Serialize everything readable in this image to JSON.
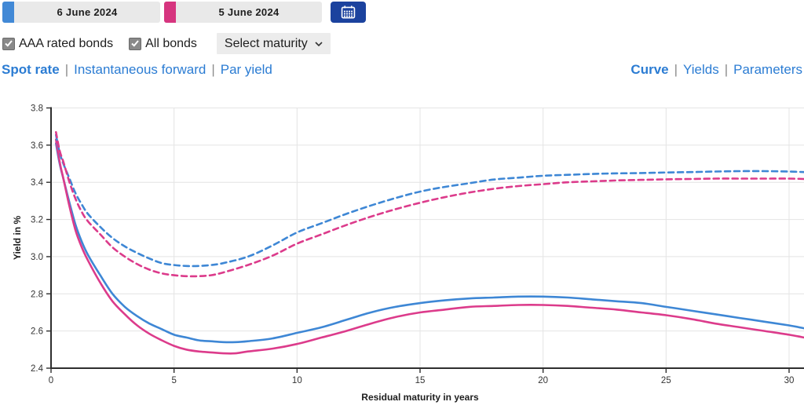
{
  "dates": [
    {
      "label": "6 June 2024",
      "color": "#4289d6"
    },
    {
      "label": "5 June 2024",
      "color": "#d6357f"
    }
  ],
  "calendar_button": {
    "icon": "calendar-icon"
  },
  "filters": {
    "checkboxes": [
      {
        "label": "AAA rated bonds",
        "checked": true
      },
      {
        "label": "All bonds",
        "checked": true
      }
    ],
    "maturity_select": {
      "value": "Select maturity",
      "icon": "chevron-down-icon"
    }
  },
  "rate_tabs": {
    "separator": "|",
    "items": [
      {
        "label": "Spot rate",
        "active": true
      },
      {
        "label": "Instantaneous forward",
        "active": false
      },
      {
        "label": "Par yield",
        "active": false
      }
    ]
  },
  "view_tabs": {
    "separator": "|",
    "items": [
      {
        "label": "Curve",
        "active": true
      },
      {
        "label": "Yields",
        "active": false
      },
      {
        "label": "Parameters",
        "active": false
      }
    ]
  },
  "accent_colors": {
    "blue": "#3e87d5",
    "pink": "#dc3b8b",
    "link_blue": "#2b7cd3",
    "button_blue": "#1b429e"
  },
  "chart_data": {
    "type": "line",
    "title": "",
    "xlabel": "Residual maturity in years",
    "ylabel": "Yield in %",
    "xlim": [
      0,
      30
    ],
    "ylim": [
      2.4,
      3.8
    ],
    "xticks": [
      0,
      5,
      10,
      15,
      20,
      25,
      30
    ],
    "ytick_labels": [
      "2.4",
      "2.6",
      "2.8",
      "3.0",
      "3.2",
      "3.4",
      "3.6",
      "3.8"
    ],
    "grid": true,
    "legend_position": "none",
    "series": [
      {
        "name": "AAA rated bonds 6 June 2024",
        "style": "solid",
        "color": "#3e87d5",
        "points": [
          [
            0.2,
            3.61
          ],
          [
            0.35,
            3.5
          ],
          [
            0.5,
            3.42
          ],
          [
            0.75,
            3.29
          ],
          [
            1,
            3.17
          ],
          [
            1.25,
            3.08
          ],
          [
            1.5,
            3.01
          ],
          [
            2,
            2.9
          ],
          [
            2.5,
            2.8
          ],
          [
            3,
            2.73
          ],
          [
            3.5,
            2.68
          ],
          [
            4,
            2.64
          ],
          [
            4.5,
            2.61
          ],
          [
            5,
            2.58
          ],
          [
            5.5,
            2.565
          ],
          [
            6,
            2.55
          ],
          [
            6.5,
            2.545
          ],
          [
            7,
            2.54
          ],
          [
            7.5,
            2.54
          ],
          [
            8,
            2.545
          ],
          [
            9,
            2.56
          ],
          [
            10,
            2.59
          ],
          [
            11,
            2.62
          ],
          [
            12,
            2.66
          ],
          [
            13,
            2.7
          ],
          [
            14,
            2.73
          ],
          [
            15,
            2.75
          ],
          [
            16,
            2.765
          ],
          [
            17,
            2.775
          ],
          [
            18,
            2.78
          ],
          [
            19,
            2.785
          ],
          [
            20,
            2.785
          ],
          [
            21,
            2.78
          ],
          [
            22,
            2.77
          ],
          [
            23,
            2.76
          ],
          [
            24,
            2.75
          ],
          [
            25,
            2.73
          ],
          [
            26,
            2.71
          ],
          [
            27,
            2.69
          ],
          [
            28,
            2.67
          ],
          [
            29,
            2.65
          ],
          [
            30,
            2.63
          ],
          [
            30.6,
            2.615
          ]
        ]
      },
      {
        "name": "AAA rated bonds 5 June 2024",
        "style": "solid",
        "color": "#dc3b8b",
        "points": [
          [
            0.2,
            3.63
          ],
          [
            0.35,
            3.51
          ],
          [
            0.5,
            3.42
          ],
          [
            0.75,
            3.27
          ],
          [
            1,
            3.14
          ],
          [
            1.25,
            3.05
          ],
          [
            1.5,
            2.98
          ],
          [
            2,
            2.86
          ],
          [
            2.5,
            2.76
          ],
          [
            3,
            2.69
          ],
          [
            3.5,
            2.63
          ],
          [
            4,
            2.585
          ],
          [
            4.5,
            2.55
          ],
          [
            5,
            2.52
          ],
          [
            5.5,
            2.5
          ],
          [
            6,
            2.49
          ],
          [
            6.5,
            2.485
          ],
          [
            7,
            2.48
          ],
          [
            7.5,
            2.48
          ],
          [
            8,
            2.49
          ],
          [
            9,
            2.505
          ],
          [
            10,
            2.53
          ],
          [
            11,
            2.565
          ],
          [
            12,
            2.6
          ],
          [
            13,
            2.64
          ],
          [
            14,
            2.675
          ],
          [
            15,
            2.7
          ],
          [
            16,
            2.715
          ],
          [
            17,
            2.73
          ],
          [
            18,
            2.735
          ],
          [
            19,
            2.74
          ],
          [
            20,
            2.74
          ],
          [
            21,
            2.735
          ],
          [
            22,
            2.725
          ],
          [
            23,
            2.715
          ],
          [
            24,
            2.7
          ],
          [
            25,
            2.685
          ],
          [
            26,
            2.665
          ],
          [
            27,
            2.64
          ],
          [
            28,
            2.62
          ],
          [
            29,
            2.6
          ],
          [
            30,
            2.58
          ],
          [
            30.6,
            2.565
          ]
        ]
      },
      {
        "name": "All bonds 6 June 2024",
        "style": "dashed",
        "color": "#3e87d5",
        "points": [
          [
            0.2,
            3.655
          ],
          [
            0.35,
            3.56
          ],
          [
            0.5,
            3.5
          ],
          [
            0.75,
            3.42
          ],
          [
            1,
            3.34
          ],
          [
            1.25,
            3.28
          ],
          [
            1.5,
            3.23
          ],
          [
            2,
            3.16
          ],
          [
            2.5,
            3.1
          ],
          [
            3,
            3.055
          ],
          [
            3.5,
            3.02
          ],
          [
            4,
            2.99
          ],
          [
            4.5,
            2.965
          ],
          [
            5,
            2.955
          ],
          [
            5.5,
            2.95
          ],
          [
            6,
            2.95
          ],
          [
            6.5,
            2.955
          ],
          [
            7,
            2.965
          ],
          [
            8,
            3.0
          ],
          [
            9,
            3.06
          ],
          [
            10,
            3.13
          ],
          [
            11,
            3.18
          ],
          [
            12,
            3.23
          ],
          [
            13,
            3.275
          ],
          [
            14,
            3.315
          ],
          [
            15,
            3.35
          ],
          [
            16,
            3.375
          ],
          [
            17,
            3.395
          ],
          [
            18,
            3.415
          ],
          [
            19,
            3.425
          ],
          [
            20,
            3.435
          ],
          [
            21,
            3.44
          ],
          [
            22,
            3.445
          ],
          [
            23,
            3.448
          ],
          [
            24,
            3.45
          ],
          [
            25,
            3.453
          ],
          [
            26,
            3.455
          ],
          [
            27,
            3.458
          ],
          [
            28,
            3.46
          ],
          [
            29,
            3.46
          ],
          [
            30,
            3.458
          ],
          [
            30.6,
            3.455
          ]
        ]
      },
      {
        "name": "All bonds 5 June 2024",
        "style": "dashed",
        "color": "#dc3b8b",
        "points": [
          [
            0.2,
            3.67
          ],
          [
            0.35,
            3.57
          ],
          [
            0.5,
            3.51
          ],
          [
            0.75,
            3.4
          ],
          [
            1,
            3.31
          ],
          [
            1.25,
            3.24
          ],
          [
            1.5,
            3.19
          ],
          [
            2,
            3.12
          ],
          [
            2.5,
            3.05
          ],
          [
            3,
            3.0
          ],
          [
            3.5,
            2.96
          ],
          [
            4,
            2.93
          ],
          [
            4.5,
            2.91
          ],
          [
            5,
            2.9
          ],
          [
            5.5,
            2.895
          ],
          [
            6,
            2.895
          ],
          [
            6.5,
            2.9
          ],
          [
            7,
            2.915
          ],
          [
            8,
            2.955
          ],
          [
            9,
            3.005
          ],
          [
            10,
            3.07
          ],
          [
            11,
            3.12
          ],
          [
            12,
            3.17
          ],
          [
            13,
            3.215
          ],
          [
            14,
            3.255
          ],
          [
            15,
            3.29
          ],
          [
            16,
            3.32
          ],
          [
            17,
            3.345
          ],
          [
            18,
            3.365
          ],
          [
            19,
            3.38
          ],
          [
            20,
            3.39
          ],
          [
            21,
            3.4
          ],
          [
            22,
            3.405
          ],
          [
            23,
            3.41
          ],
          [
            24,
            3.413
          ],
          [
            25,
            3.416
          ],
          [
            26,
            3.418
          ],
          [
            27,
            3.42
          ],
          [
            28,
            3.42
          ],
          [
            29,
            3.42
          ],
          [
            30,
            3.42
          ],
          [
            30.6,
            3.418
          ]
        ]
      }
    ]
  }
}
